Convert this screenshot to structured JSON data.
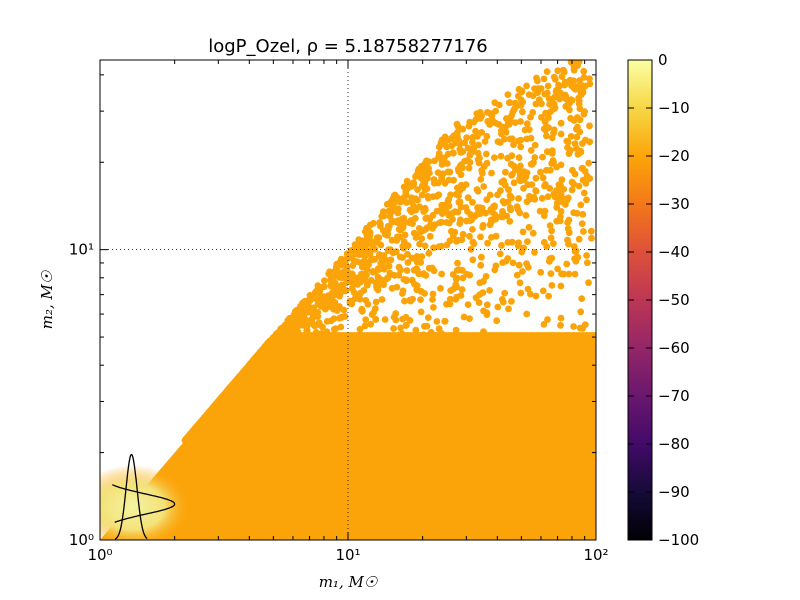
{
  "chart_data": [
    {
      "type": "scatter",
      "title": "logP_Ozel, ρ = 5.18758277176",
      "xlabel": "m₁, M☉",
      "ylabel": "m₂, M☉",
      "xscale": "log",
      "yscale": "log",
      "xlim": [
        1,
        100
      ],
      "ylim": [
        1,
        45
      ],
      "x_ticks": [
        1,
        10,
        100
      ],
      "x_tick_labels": [
        "10⁰",
        "10¹",
        "10²"
      ],
      "y_ticks": [
        1,
        10
      ],
      "y_tick_labels": [
        "10⁰",
        "10¹"
      ],
      "reference_lines": {
        "x": 10,
        "y": 10,
        "style": "dotted"
      },
      "grid": false,
      "point_color": "#fba40a",
      "high_color": "#f5f08c",
      "scatter_envelope": {
        "boundary": "m2 <= m1",
        "dense_region_max_m2": 5.2,
        "sparse_region_max_m2": 40
      },
      "high_likelihood_peak": {
        "m1": 1.35,
        "m2": 1.3
      },
      "marginal_curves": [
        {
          "axis": "x",
          "peak_m1": 1.34,
          "peak_height_m2": 1.97,
          "range_m1": [
            1.15,
            1.55
          ]
        },
        {
          "axis": "y",
          "peak_m2": 1.33,
          "peak_extent_m1": 2.0,
          "range_m2": [
            1.15,
            1.55
          ]
        }
      ]
    },
    {
      "type": "colorbar",
      "colormap": "inferno",
      "range": [
        -100,
        0
      ],
      "ticks": [
        0,
        -10,
        -20,
        -30,
        -40,
        -50,
        -60,
        -70,
        -80,
        -90,
        -100
      ],
      "tick_labels": [
        "0",
        "−10",
        "−20",
        "−30",
        "−40",
        "−50",
        "−60",
        "−70",
        "−80",
        "−90",
        "−100"
      ]
    }
  ]
}
